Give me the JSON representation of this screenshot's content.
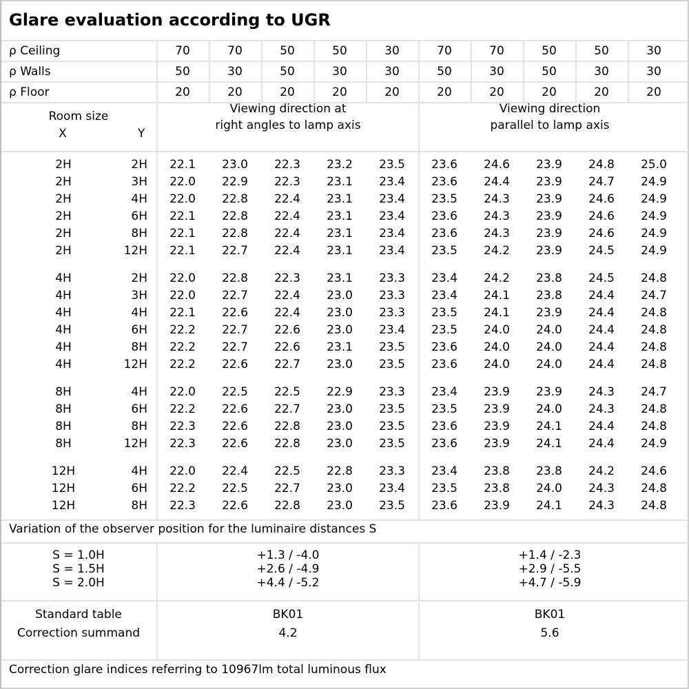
{
  "title": "Glare evaluation according to UGR",
  "reflectances": [
    {
      "label": "ρ Ceiling",
      "values": [
        "70",
        "70",
        "50",
        "50",
        "30",
        "70",
        "70",
        "50",
        "50",
        "30"
      ]
    },
    {
      "label": "ρ Walls",
      "values": [
        "50",
        "30",
        "50",
        "30",
        "30",
        "50",
        "30",
        "50",
        "30",
        "30"
      ]
    },
    {
      "label": "ρ Floor",
      "values": [
        "20",
        "20",
        "20",
        "20",
        "20",
        "20",
        "20",
        "20",
        "20",
        "20"
      ]
    }
  ],
  "header": {
    "room_size": "Room size",
    "x": "X",
    "y": "Y",
    "right_angles": [
      "Viewing direction at",
      "right angles to lamp axis"
    ],
    "parallel": [
      "Viewing direction",
      "parallel to lamp axis"
    ]
  },
  "groups": [
    [
      [
        "2H",
        "2H",
        [
          "22.1",
          "23.0",
          "22.3",
          "23.2",
          "23.5",
          "23.6",
          "24.6",
          "23.9",
          "24.8",
          "25.0"
        ]
      ],
      [
        "2H",
        "3H",
        [
          "22.0",
          "22.9",
          "22.3",
          "23.1",
          "23.4",
          "23.6",
          "24.4",
          "23.9",
          "24.7",
          "24.9"
        ]
      ],
      [
        "2H",
        "4H",
        [
          "22.0",
          "22.8",
          "22.4",
          "23.1",
          "23.4",
          "23.5",
          "24.3",
          "23.9",
          "24.6",
          "24.9"
        ]
      ],
      [
        "2H",
        "6H",
        [
          "22.1",
          "22.8",
          "22.4",
          "23.1",
          "23.4",
          "23.6",
          "24.3",
          "23.9",
          "24.6",
          "24.9"
        ]
      ],
      [
        "2H",
        "8H",
        [
          "22.1",
          "22.8",
          "22.4",
          "23.1",
          "23.4",
          "23.6",
          "24.3",
          "23.9",
          "24.6",
          "24.9"
        ]
      ],
      [
        "2H",
        "12H",
        [
          "22.1",
          "22.7",
          "22.4",
          "23.1",
          "23.4",
          "23.5",
          "24.2",
          "23.9",
          "24.5",
          "24.9"
        ]
      ]
    ],
    [
      [
        "4H",
        "2H",
        [
          "22.0",
          "22.8",
          "22.3",
          "23.1",
          "23.3",
          "23.4",
          "24.2",
          "23.8",
          "24.5",
          "24.8"
        ]
      ],
      [
        "4H",
        "3H",
        [
          "22.0",
          "22.7",
          "22.4",
          "23.0",
          "23.3",
          "23.4",
          "24.1",
          "23.8",
          "24.4",
          "24.7"
        ]
      ],
      [
        "4H",
        "4H",
        [
          "22.1",
          "22.6",
          "22.4",
          "23.0",
          "23.3",
          "23.5",
          "24.1",
          "23.9",
          "24.4",
          "24.8"
        ]
      ],
      [
        "4H",
        "6H",
        [
          "22.2",
          "22.7",
          "22.6",
          "23.0",
          "23.4",
          "23.5",
          "24.0",
          "24.0",
          "24.4",
          "24.8"
        ]
      ],
      [
        "4H",
        "8H",
        [
          "22.2",
          "22.7",
          "22.6",
          "23.1",
          "23.5",
          "23.6",
          "24.0",
          "24.0",
          "24.4",
          "24.8"
        ]
      ],
      [
        "4H",
        "12H",
        [
          "22.2",
          "22.6",
          "22.7",
          "23.0",
          "23.5",
          "23.6",
          "24.0",
          "24.0",
          "24.4",
          "24.8"
        ]
      ]
    ],
    [
      [
        "8H",
        "4H",
        [
          "22.0",
          "22.5",
          "22.5",
          "22.9",
          "23.3",
          "23.4",
          "23.9",
          "23.9",
          "24.3",
          "24.7"
        ]
      ],
      [
        "8H",
        "6H",
        [
          "22.2",
          "22.6",
          "22.7",
          "23.0",
          "23.5",
          "23.5",
          "23.9",
          "24.0",
          "24.3",
          "24.8"
        ]
      ],
      [
        "8H",
        "8H",
        [
          "22.3",
          "22.6",
          "22.8",
          "23.0",
          "23.5",
          "23.6",
          "23.9",
          "24.1",
          "24.4",
          "24.8"
        ]
      ],
      [
        "8H",
        "12H",
        [
          "22.3",
          "22.6",
          "22.8",
          "23.0",
          "23.5",
          "23.6",
          "23.9",
          "24.1",
          "24.4",
          "24.9"
        ]
      ]
    ],
    [
      [
        "12H",
        "4H",
        [
          "22.0",
          "22.4",
          "22.5",
          "22.8",
          "23.3",
          "23.4",
          "23.8",
          "23.8",
          "24.2",
          "24.6"
        ]
      ],
      [
        "12H",
        "6H",
        [
          "22.2",
          "22.5",
          "22.7",
          "23.0",
          "23.4",
          "23.5",
          "23.8",
          "24.0",
          "24.3",
          "24.8"
        ]
      ],
      [
        "12H",
        "8H",
        [
          "22.3",
          "22.6",
          "22.8",
          "23.0",
          "23.5",
          "23.6",
          "23.9",
          "24.1",
          "24.3",
          "24.8"
        ]
      ]
    ]
  ],
  "variation": {
    "caption": "Variation of the observer position for the luminaire distances S",
    "rows": [
      [
        "S = 1.0H",
        "+1.3 / -4.0",
        "+1.4 / -2.3"
      ],
      [
        "S = 1.5H",
        "+2.6 / -4.9",
        "+2.9 / -5.5"
      ],
      [
        "S = 2.0H",
        "+4.4 / -5.2",
        "+4.7 / -5.9"
      ]
    ]
  },
  "standard": {
    "label1": "Standard table",
    "label2": "Correction summand",
    "right_angles_table": "BK01",
    "right_angles_summand": "4.2",
    "parallel_table": "BK01",
    "parallel_summand": "5.6"
  },
  "footer": "Correction glare indices referring to 10967lm total luminous flux"
}
